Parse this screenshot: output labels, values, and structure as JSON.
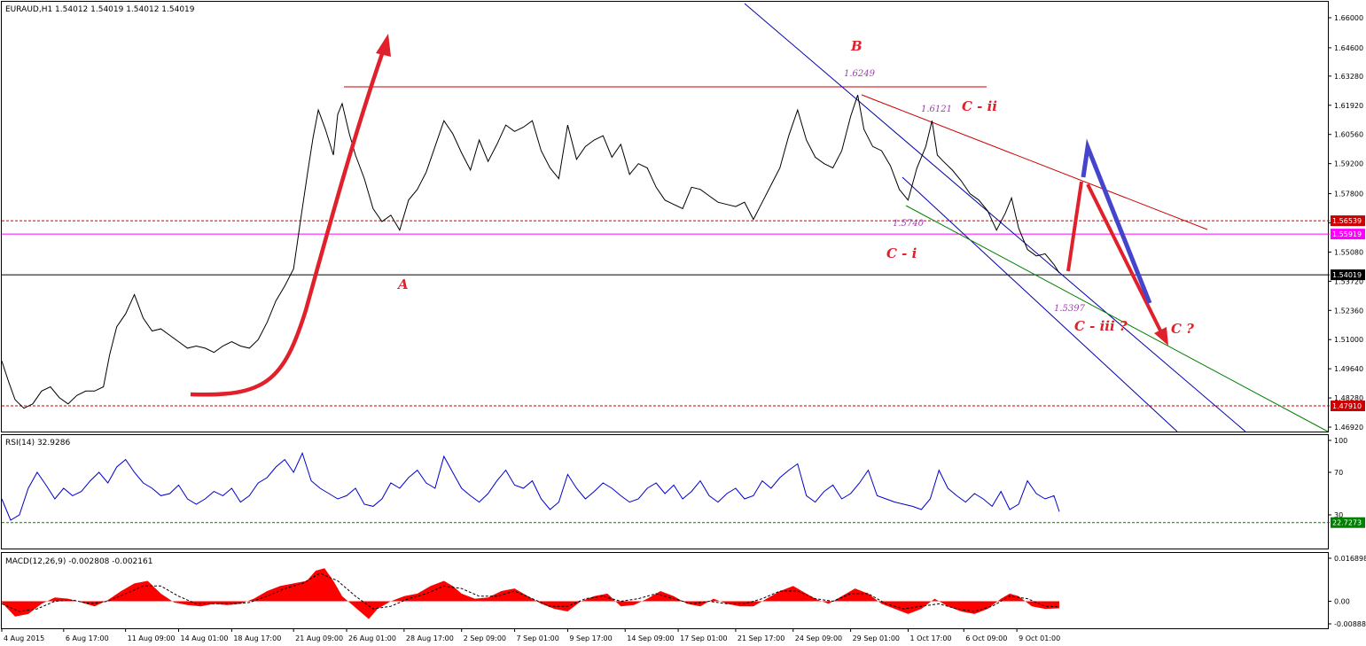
{
  "chart_data": [
    {
      "type": "line",
      "title": "EURAUD,H1  1.54012 1.54019 1.54012 1.54019",
      "symbol": "EURAUD,H1",
      "ohlc": [
        "1.54012",
        "1.54019",
        "1.54012",
        "1.54019"
      ],
      "ylim": [
        1.4692,
        1.66
      ],
      "y_ticks": [
        "1.66000",
        "1.64600",
        "1.63280",
        "1.61920",
        "1.60560",
        "1.59200",
        "1.57800",
        "1.56440",
        "1.55080",
        "1.53720",
        "1.52360",
        "1.51000",
        "1.49640",
        "1.48280",
        "1.46920"
      ],
      "x_ticks": [
        "4 Aug 2015",
        "6 Aug 17:00",
        "11 Aug 09:00",
        "14 Aug 01:00",
        "18 Aug 17:00",
        "21 Aug 09:00",
        "26 Aug 01:00",
        "28 Aug 17:00",
        "2 Sep 09:00",
        "7 Sep 01:00",
        "9 Sep 17:00",
        "14 Sep 09:00",
        "17 Sep 01:00",
        "21 Sep 17:00",
        "24 Sep 09:00",
        "29 Sep 01:00",
        "1 Oct 17:00",
        "6 Oct 09:00",
        "9 Oct 01:00"
      ],
      "x_index": [
        0,
        70,
        140,
        200,
        260,
        330,
        390,
        455,
        520,
        580,
        640,
        705,
        765,
        830,
        895,
        960,
        1025,
        1088,
        1148
      ],
      "series": [
        {
          "color": "#000000",
          "x": [
            0,
            8,
            15,
            25,
            35,
            45,
            55,
            65,
            75,
            85,
            95,
            105,
            115,
            122,
            130,
            140,
            150,
            160,
            170,
            180,
            190,
            200,
            210,
            220,
            230,
            240,
            250,
            260,
            270,
            280,
            290,
            300,
            310,
            320,
            330,
            338,
            346,
            352,
            358,
            366,
            375,
            380,
            385,
            393,
            400,
            410,
            420,
            430,
            440,
            450,
            460,
            470,
            480,
            490,
            500,
            510,
            520,
            530,
            540,
            550,
            560,
            570,
            580,
            590,
            600,
            610,
            620,
            630,
            640,
            650,
            660,
            670,
            680,
            690,
            700,
            710,
            720,
            730,
            740,
            750,
            760,
            770,
            780,
            790,
            800,
            810,
            820,
            830,
            840,
            850,
            860,
            870,
            880,
            890,
            900,
            910,
            920,
            930,
            940,
            950,
            960,
            968,
            975,
            985,
            995,
            1005,
            1015,
            1025,
            1035,
            1045,
            1052,
            1058,
            1065,
            1075,
            1085,
            1095,
            1105,
            1115,
            1125,
            1135,
            1142,
            1150,
            1160,
            1170,
            1180,
            1190,
            1196
          ],
          "values": [
            1.5,
            1.49,
            1.482,
            1.478,
            1.48,
            1.486,
            1.488,
            1.483,
            1.48,
            1.484,
            1.486,
            1.486,
            1.488,
            1.503,
            1.516,
            1.522,
            1.531,
            1.52,
            1.514,
            1.515,
            1.512,
            1.509,
            1.506,
            1.507,
            1.506,
            1.504,
            1.507,
            1.509,
            1.507,
            1.506,
            1.51,
            1.518,
            1.528,
            1.535,
            1.543,
            1.566,
            1.588,
            1.604,
            1.617,
            1.608,
            1.596,
            1.615,
            1.62,
            1.606,
            1.596,
            1.585,
            1.571,
            1.565,
            1.568,
            1.561,
            1.575,
            1.58,
            1.588,
            1.6,
            1.612,
            1.606,
            1.597,
            1.589,
            1.603,
            1.593,
            1.601,
            1.61,
            1.607,
            1.609,
            1.612,
            1.598,
            1.59,
            1.585,
            1.61,
            1.594,
            1.6,
            1.603,
            1.605,
            1.595,
            1.601,
            1.587,
            1.592,
            1.59,
            1.581,
            1.575,
            1.573,
            1.571,
            1.581,
            1.58,
            1.577,
            1.574,
            1.573,
            1.572,
            1.574,
            1.566,
            1.574,
            1.582,
            1.59,
            1.605,
            1.617,
            1.603,
            1.595,
            1.592,
            1.59,
            1.598,
            1.614,
            1.624,
            1.608,
            1.6,
            1.598,
            1.591,
            1.58,
            1.575,
            1.59,
            1.6,
            1.612,
            1.596,
            1.593,
            1.589,
            1.584,
            1.578,
            1.575,
            1.57,
            1.561,
            1.569,
            1.576,
            1.562,
            1.552,
            1.549,
            1.55,
            1.545,
            1.541
          ]
        }
      ],
      "levels": [
        {
          "value": "1.56539",
          "color": "#cc0000",
          "style": "dashed"
        },
        {
          "value": "1.55919",
          "color": "#ff00ff",
          "style": "solid"
        },
        {
          "value": "1.54019",
          "color": "#000000",
          "style": "solid"
        },
        {
          "value": "1.47910",
          "color": "#cc0000",
          "style": "dashed"
        }
      ],
      "annotations": {
        "wave_labels": [
          "A",
          "B",
          "C - i",
          "C - ii",
          "C - iii  ?",
          "C ?"
        ],
        "price_labels": [
          "1.6249",
          "1.6121",
          "1.5740",
          "1.5397"
        ]
      }
    },
    {
      "type": "line",
      "title": "RSI(14) 32.9286",
      "ylim": [
        0,
        100
      ],
      "y_ticks": [
        "100",
        "70",
        "30"
      ],
      "level_label": "22.7273",
      "series": [
        {
          "color": "#0000cc",
          "x": [
            0,
            10,
            20,
            30,
            40,
            50,
            60,
            70,
            80,
            90,
            100,
            110,
            120,
            130,
            140,
            150,
            160,
            170,
            180,
            190,
            200,
            210,
            220,
            230,
            240,
            250,
            260,
            270,
            280,
            290,
            300,
            310,
            320,
            330,
            340,
            350,
            360,
            370,
            380,
            390,
            400,
            410,
            420,
            430,
            440,
            450,
            460,
            470,
            480,
            490,
            500,
            510,
            520,
            530,
            540,
            550,
            560,
            570,
            580,
            590,
            600,
            610,
            620,
            630,
            640,
            650,
            660,
            670,
            680,
            690,
            700,
            710,
            720,
            730,
            740,
            750,
            760,
            770,
            780,
            790,
            800,
            810,
            820,
            830,
            840,
            850,
            860,
            870,
            880,
            890,
            900,
            910,
            920,
            930,
            940,
            950,
            960,
            970,
            980,
            990,
            1000,
            1010,
            1020,
            1030,
            1040,
            1050,
            1060,
            1070,
            1080,
            1090,
            1100,
            1110,
            1120,
            1130,
            1140,
            1150,
            1160,
            1170,
            1180,
            1190,
            1196
          ],
          "values": [
            45,
            25,
            30,
            55,
            70,
            58,
            45,
            55,
            48,
            52,
            62,
            70,
            60,
            75,
            82,
            70,
            60,
            55,
            48,
            50,
            58,
            45,
            40,
            45,
            52,
            48,
            55,
            42,
            48,
            60,
            65,
            75,
            82,
            70,
            88,
            62,
            55,
            50,
            45,
            48,
            55,
            40,
            38,
            45,
            60,
            55,
            65,
            72,
            60,
            55,
            85,
            70,
            55,
            48,
            42,
            50,
            62,
            72,
            58,
            55,
            62,
            45,
            35,
            42,
            68,
            55,
            45,
            52,
            60,
            55,
            48,
            42,
            45,
            55,
            60,
            50,
            58,
            45,
            52,
            62,
            48,
            42,
            50,
            55,
            45,
            48,
            62,
            55,
            65,
            72,
            78,
            48,
            42,
            52,
            58,
            45,
            50,
            60,
            72,
            48,
            45,
            42,
            40,
            38,
            35,
            45,
            72,
            55,
            48,
            42,
            50,
            45,
            38,
            52,
            35,
            40,
            62,
            50,
            45,
            48,
            33
          ]
        }
      ]
    },
    {
      "type": "area",
      "title": "MACD(12,26,9) -0.002808 -0.002161",
      "ylim": [
        -0.00888,
        0.01689
      ],
      "y_ticks": [
        "0.016898",
        "0.00",
        "-0.00888"
      ],
      "series": [
        {
          "name": "MACD",
          "color": "#ff0000",
          "x": [
            0,
            15,
            30,
            45,
            60,
            75,
            90,
            105,
            120,
            135,
            150,
            165,
            180,
            195,
            210,
            225,
            240,
            255,
            270,
            285,
            300,
            315,
            330,
            345,
            355,
            365,
            375,
            385,
            395,
            405,
            415,
            425,
            440,
            455,
            470,
            485,
            500,
            510,
            520,
            535,
            550,
            565,
            580,
            595,
            610,
            625,
            640,
            655,
            670,
            685,
            700,
            715,
            730,
            745,
            760,
            775,
            790,
            805,
            820,
            835,
            850,
            865,
            880,
            895,
            905,
            920,
            935,
            950,
            965,
            980,
            995,
            1010,
            1025,
            1040,
            1055,
            1070,
            1085,
            1100,
            1115,
            1130,
            1140,
            1150,
            1165,
            1180,
            1196
          ],
          "values": [
            -0.0005,
            -0.006,
            -0.005,
            -0.001,
            0.0015,
            0.001,
            -0.0005,
            -0.002,
            0.0005,
            0.004,
            0.007,
            0.008,
            0.003,
            -0.0005,
            -0.0015,
            -0.002,
            -0.001,
            -0.0015,
            -0.001,
            0.001,
            0.004,
            0.006,
            0.007,
            0.008,
            0.012,
            0.013,
            0.008,
            0.002,
            -0.001,
            -0.004,
            -0.007,
            -0.003,
            0.0,
            0.002,
            0.003,
            0.006,
            0.008,
            0.006,
            0.003,
            0.001,
            0.0015,
            0.004,
            0.005,
            0.002,
            -0.001,
            -0.003,
            -0.004,
            0.0,
            0.002,
            0.003,
            -0.002,
            -0.0015,
            0.001,
            0.004,
            0.002,
            -0.001,
            -0.002,
            0.001,
            -0.001,
            -0.002,
            -0.002,
            0.001,
            0.004,
            0.006,
            0.004,
            0.001,
            -0.001,
            0.002,
            0.005,
            0.003,
            -0.001,
            -0.003,
            -0.005,
            -0.003,
            0.001,
            -0.002,
            -0.004,
            -0.005,
            -0.003,
            0.001,
            0.003,
            0.002,
            -0.002,
            -0.003,
            -0.0028
          ]
        },
        {
          "name": "Signal",
          "color": "#000000",
          "style": "dashed",
          "x": [
            0,
            20,
            40,
            60,
            80,
            100,
            120,
            140,
            160,
            180,
            200,
            220,
            240,
            260,
            280,
            300,
            320,
            340,
            360,
            380,
            400,
            420,
            440,
            460,
            480,
            500,
            520,
            540,
            560,
            580,
            600,
            620,
            640,
            660,
            680,
            700,
            720,
            740,
            760,
            780,
            800,
            820,
            840,
            860,
            880,
            900,
            920,
            940,
            960,
            980,
            1000,
            1020,
            1040,
            1060,
            1080,
            1100,
            1120,
            1140,
            1160,
            1180,
            1196
          ],
          "values": [
            -0.001,
            -0.004,
            -0.003,
            0.0,
            0.0005,
            -0.001,
            0.0,
            0.003,
            0.006,
            0.006,
            0.002,
            -0.001,
            -0.001,
            -0.001,
            -0.0005,
            0.002,
            0.005,
            0.007,
            0.011,
            0.008,
            0.002,
            -0.003,
            -0.002,
            0.001,
            0.003,
            0.006,
            0.005,
            0.002,
            0.002,
            0.004,
            0.001,
            -0.002,
            -0.002,
            0.001,
            0.002,
            0.0,
            0.001,
            0.003,
            0.001,
            -0.001,
            0.0,
            -0.001,
            -0.001,
            0.001,
            0.004,
            0.004,
            0.001,
            0.0,
            0.003,
            0.003,
            -0.001,
            -0.003,
            -0.002,
            -0.001,
            -0.003,
            -0.004,
            -0.002,
            0.002,
            0.001,
            -0.002,
            -0.0022
          ]
        }
      ]
    }
  ]
}
